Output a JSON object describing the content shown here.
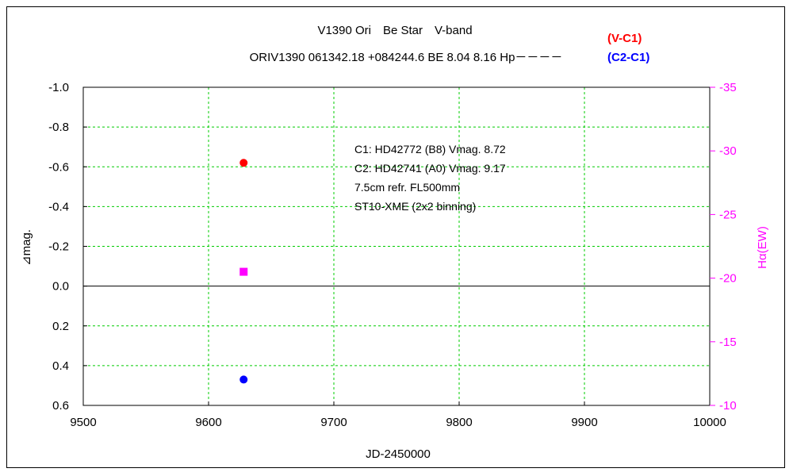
{
  "chart_data": {
    "type": "scatter",
    "title": "V1390 Ori　Be Star　V-band",
    "subtitle": "ORIV1390 061342.18 +084244.6 BE 8.04 8.16 Hp－－－－",
    "xlabel": "JD-2450000",
    "ylabel": "⊿mag.",
    "y2label": "Hα(EW)",
    "xlim": [
      9500,
      10000
    ],
    "ylim": [
      -1.0,
      0.6
    ],
    "y_inverted": true,
    "y2lim": [
      -35,
      -10
    ],
    "y2_inverted": true,
    "x_ticks": [
      9500,
      9600,
      9700,
      9800,
      9900,
      10000
    ],
    "x_tick_labels": [
      "9500",
      "9600",
      "9700",
      "9800",
      "9900",
      "10000"
    ],
    "y_ticks": [
      -1.0,
      -0.8,
      -0.6,
      -0.4,
      -0.2,
      0.0,
      0.2,
      0.4,
      0.6
    ],
    "y_tick_labels": [
      "-1.0",
      "-0.8",
      "-0.6",
      "-0.4",
      "-0.2",
      "0.0",
      "0.2",
      "0.4",
      "0.6"
    ],
    "y2_ticks": [
      -35,
      -30,
      -25,
      -20,
      -15,
      -10
    ],
    "y2_tick_labels": [
      "-35",
      "-30",
      "-25",
      "-20",
      "-15",
      "-10"
    ],
    "grid": true,
    "legend_position": "top-right",
    "annotation_lines": [
      "C1: HD42772 (B8) Vmag. 8.72",
      "C2: HD42741 (A0) Vmag. 9.17",
      "7.5cm refr. FL500mm",
      "ST10-XME (2x2 binning)"
    ],
    "series": [
      {
        "name": "(V-C1)",
        "axis": "left",
        "marker": "circle",
        "color": "#ff0000",
        "points": [
          {
            "x": 9628,
            "y": -0.62
          }
        ]
      },
      {
        "name": "(C2-C1)",
        "axis": "left",
        "marker": "circle",
        "color": "#0000ff",
        "points": [
          {
            "x": 9628,
            "y": 0.47
          }
        ]
      },
      {
        "axis": "right",
        "marker": "square",
        "color": "#ff00ff",
        "points": [
          {
            "x": 9628,
            "y": -20.5
          }
        ]
      }
    ]
  }
}
